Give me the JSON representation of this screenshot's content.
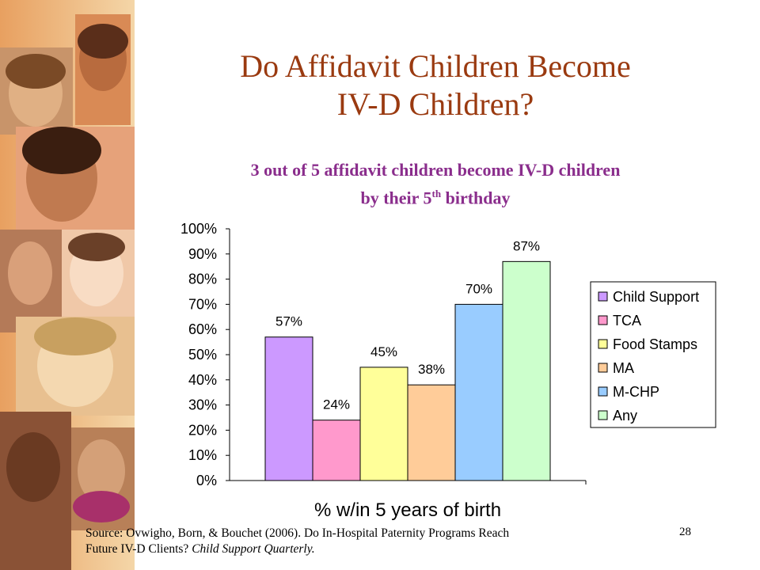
{
  "slide": {
    "title_line1": "Do Affidavit Children Become",
    "title_line2": "IV-D Children?",
    "subtitle_line1": "3 out of 5 affidavit children become IV-D children",
    "subtitle_line2_pre": "by their 5",
    "subtitle_sup": "th",
    "subtitle_line2_post": " birthday",
    "source_line1": "Source: Ovwigho, Born, & Bouchet (2006).  Do In-Hospital Paternity Programs Reach",
    "source_line2_pre": "Future IV-D Clients?  ",
    "source_line2_italic": "Child Support Quarterly.",
    "page_number": "28"
  },
  "chart_data": {
    "type": "bar",
    "title": "",
    "xlabel": "% w/in 5 years of birth",
    "ylabel": "",
    "ylim": [
      0,
      100
    ],
    "y_ticks": [
      "0%",
      "10%",
      "20%",
      "30%",
      "40%",
      "50%",
      "60%",
      "70%",
      "80%",
      "90%",
      "100%"
    ],
    "series": [
      {
        "name": "Child Support",
        "value": 57,
        "label": "57%",
        "color": "#cc99ff"
      },
      {
        "name": "TCA",
        "value": 24,
        "label": "24%",
        "color": "#ff99cc"
      },
      {
        "name": "Food Stamps",
        "value": 45,
        "label": "45%",
        "color": "#ffff99"
      },
      {
        "name": "MA",
        "value": 38,
        "label": "38%",
        "color": "#ffcc99"
      },
      {
        "name": "M-CHP",
        "value": 70,
        "label": "70%",
        "color": "#99ccff"
      },
      {
        "name": "Any",
        "value": 87,
        "label": "87%",
        "color": "#ccffcc"
      }
    ],
    "grid": false,
    "legend_position": "right"
  }
}
